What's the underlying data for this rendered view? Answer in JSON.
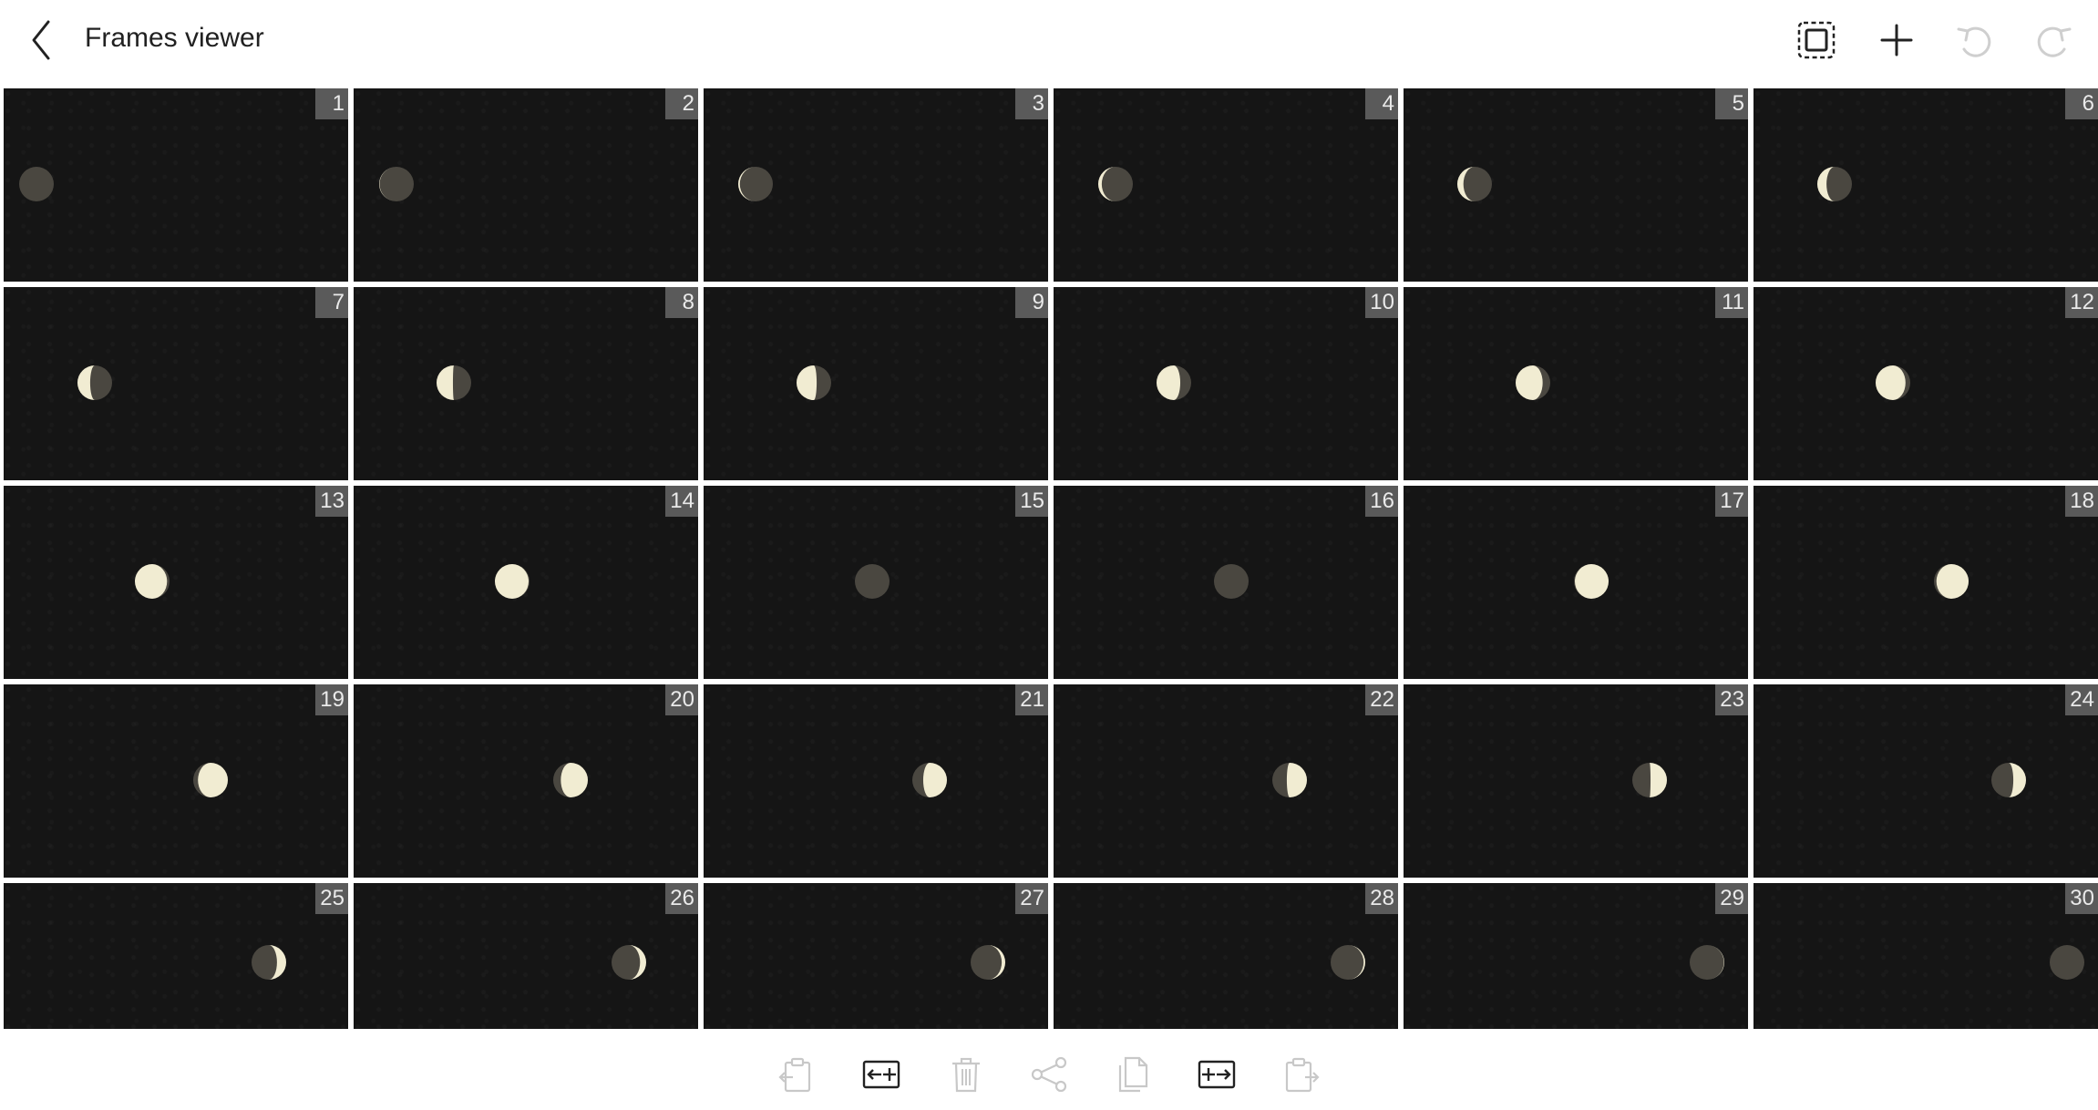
{
  "header": {
    "title": "Frames viewer",
    "back_icon": "chevron-left-icon",
    "actions": [
      {
        "name": "select-all-icon",
        "enabled": true
      },
      {
        "name": "plus-icon",
        "enabled": true
      },
      {
        "name": "undo-icon",
        "enabled": false
      },
      {
        "name": "redo-icon",
        "enabled": false
      }
    ]
  },
  "colors": {
    "frame_background": "#151515",
    "moon_lit": "#f1ecd2",
    "moon_dark": "#4a4740",
    "badge_background": "#5a5a5a",
    "badge_text": "#eaeaea",
    "icon_enabled": "#222222",
    "icon_disabled": "#c8c8c8"
  },
  "frames": [
    {
      "number": "1"
    },
    {
      "number": "2"
    },
    {
      "number": "3"
    },
    {
      "number": "4"
    },
    {
      "number": "5"
    },
    {
      "number": "6"
    },
    {
      "number": "7"
    },
    {
      "number": "8"
    },
    {
      "number": "9"
    },
    {
      "number": "10"
    },
    {
      "number": "11"
    },
    {
      "number": "12"
    },
    {
      "number": "13"
    },
    {
      "number": "14"
    },
    {
      "number": "15"
    },
    {
      "number": "16"
    },
    {
      "number": "17"
    },
    {
      "number": "18"
    },
    {
      "number": "19"
    },
    {
      "number": "20"
    },
    {
      "number": "21"
    },
    {
      "number": "22"
    },
    {
      "number": "23"
    },
    {
      "number": "24"
    },
    {
      "number": "25"
    },
    {
      "number": "26"
    },
    {
      "number": "27"
    },
    {
      "number": "28"
    },
    {
      "number": "29"
    },
    {
      "number": "30"
    }
  ],
  "toolbar": [
    {
      "name": "paste-before-icon",
      "enabled": false
    },
    {
      "name": "insert-frame-before-icon",
      "enabled": true
    },
    {
      "name": "delete-icon",
      "enabled": false
    },
    {
      "name": "share-icon",
      "enabled": false
    },
    {
      "name": "copy-icon",
      "enabled": false
    },
    {
      "name": "insert-frame-after-icon",
      "enabled": true
    },
    {
      "name": "paste-after-icon",
      "enabled": false
    }
  ]
}
